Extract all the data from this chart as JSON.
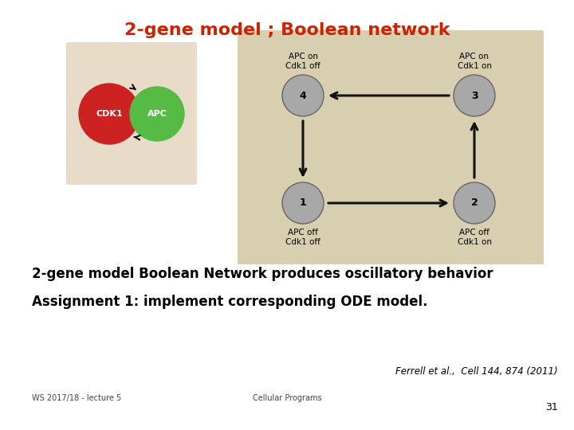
{
  "title": "2-gene model ; Boolean network",
  "title_color": "#cc2200",
  "title_fontsize": 16,
  "bg_color": "#ffffff",
  "left_bg": "#e8dcc8",
  "right_bg": "#d8cfb0",
  "text1": "2-gene model Boolean Network produces oscillatory behavior",
  "text2": "Assignment 1: implement corresponding ODE model.",
  "text3": "Ferrell et al.,  Cell 144, 874 (2011)",
  "text4": "WS 2017/18 - lecture 5",
  "text5": "Cellular Programs",
  "text6": "31",
  "node_color": "#a8a8a8",
  "node_edge_color": "#666666",
  "cdk1_color": "#cc2222",
  "apc_color": "#55bb44",
  "arrow_color": "#111111"
}
